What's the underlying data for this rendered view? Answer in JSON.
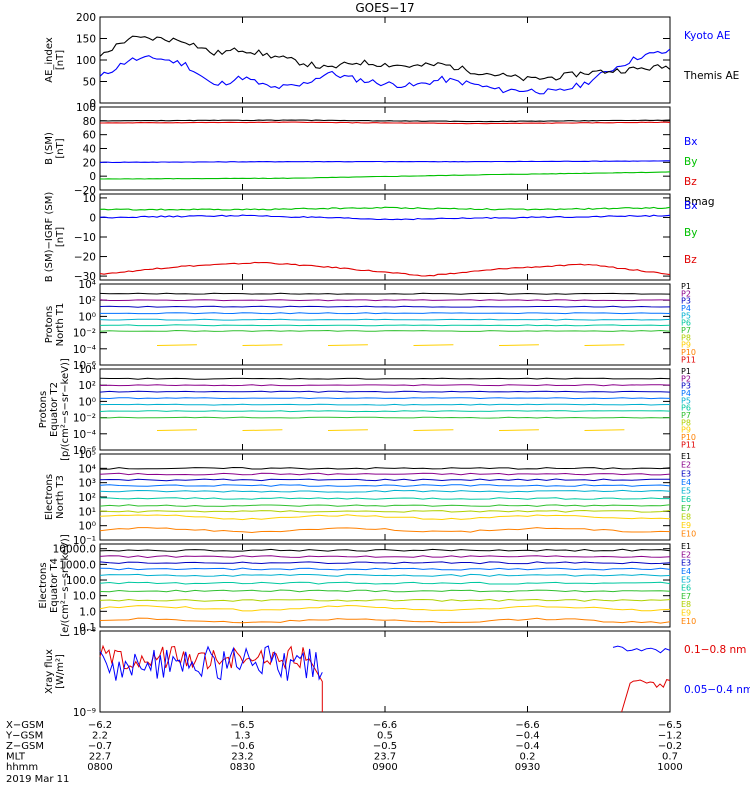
{
  "title": "GOES−17",
  "date_label": "2019 Mar 11",
  "chart_data": [
    {
      "id": "ae",
      "type": "line",
      "ylabel": [
        "AE_index",
        "[nT]"
      ],
      "ylim": [
        0,
        200
      ],
      "yticks": [
        0,
        50,
        100,
        150,
        200
      ],
      "yticklabels": [
        "0",
        "50",
        "100",
        "150",
        "200"
      ],
      "x": [
        0,
        0.05,
        0.1,
        0.15,
        0.2,
        0.25,
        0.3,
        0.35,
        0.4,
        0.45,
        0.5,
        0.55,
        0.6,
        0.65,
        0.7,
        0.75,
        0.8,
        0.85,
        0.9,
        0.95,
        1.0
      ],
      "series": [
        {
          "name": "Kyoto AE",
          "color": "#0000ff",
          "values": [
            60,
            100,
            105,
            90,
            40,
            60,
            35,
            40,
            70,
            55,
            45,
            40,
            55,
            45,
            30,
            30,
            25,
            45,
            80,
            110,
            120
          ]
        },
        {
          "name": "Themis AE",
          "color": "#000000",
          "values": [
            110,
            150,
            150,
            145,
            115,
            125,
            110,
            95,
            80,
            95,
            90,
            85,
            90,
            75,
            65,
            55,
            60,
            70,
            75,
            80,
            85
          ]
        }
      ]
    },
    {
      "id": "bsm",
      "type": "line",
      "ylabel": [
        "B (SM)",
        "[nT]"
      ],
      "ylim": [
        -20,
        100
      ],
      "yticks": [
        -20,
        0,
        20,
        40,
        60,
        80,
        100
      ],
      "yticklabels": [
        "−20",
        "0",
        "20",
        "40",
        "60",
        "80",
        "100"
      ],
      "series": [
        {
          "name": "Bx",
          "color": "#0000ff",
          "values": [
            20,
            21,
            21,
            22
          ]
        },
        {
          "name": "By",
          "color": "#00c000",
          "values": [
            -4,
            -3,
            2,
            6
          ]
        },
        {
          "name": "Bz",
          "color": "#e00000",
          "values": [
            77,
            78,
            76,
            78
          ]
        },
        {
          "name": "Bmag",
          "color": "#000000",
          "values": [
            80,
            81,
            79,
            81
          ]
        }
      ]
    },
    {
      "id": "bigrf",
      "type": "line",
      "ylabel": [
        "B (SM)−IGRF (SM)",
        "[nT]"
      ],
      "ylim": [
        -32,
        12
      ],
      "yticks": [
        -30,
        -20,
        -10,
        0,
        10
      ],
      "yticklabels": [
        "−30",
        "−20",
        "−10",
        "0",
        "10"
      ],
      "series": [
        {
          "name": "Bx",
          "color": "#0000ff",
          "values": [
            0,
            1,
            -1,
            0,
            1
          ]
        },
        {
          "name": "By",
          "color": "#00c000",
          "values": [
            4,
            4,
            5,
            4,
            5
          ]
        },
        {
          "name": "Bz",
          "color": "#e00000",
          "values": [
            -29,
            -25,
            -23,
            -26,
            -30,
            -26,
            -24,
            -29
          ]
        }
      ]
    },
    {
      "id": "pnorth",
      "type": "line",
      "log": true,
      "ylabel": [
        "Protons",
        "North T1"
      ],
      "ylim": [
        -6,
        4
      ],
      "yticks": [
        -6,
        -4,
        -2,
        0,
        2,
        4
      ],
      "yticklabels": [
        "10⁻⁶",
        "10⁻⁴",
        "10⁻²",
        "10⁰",
        "10²",
        "10⁴"
      ],
      "channels": [
        "P1",
        "P2",
        "P3",
        "P4",
        "P5",
        "P6",
        "P7",
        "P8",
        "P9",
        "P10",
        "P11"
      ],
      "levels": [
        2.8,
        2.0,
        1.2,
        0.4,
        -0.4,
        -1.1,
        -1.8,
        null,
        -3.6,
        null,
        null
      ]
    },
    {
      "id": "pequator",
      "type": "line",
      "log": true,
      "ylabel": [
        "Protons",
        "Equator T2",
        "[p/(cm²−s−sr−keV)]"
      ],
      "ylim": [
        -6,
        4
      ],
      "yticks": [
        -6,
        -4,
        -2,
        0,
        2,
        4
      ],
      "yticklabels": [
        "10⁻⁶",
        "10⁻⁴",
        "10⁻²",
        "10⁰",
        "10²",
        "10⁴"
      ],
      "channels": [
        "P1",
        "P2",
        "P3",
        "P4",
        "P5",
        "P6",
        "P7",
        "P8",
        "P9",
        "P10",
        "P11"
      ],
      "levels": [
        2.8,
        2.0,
        1.2,
        0.4,
        -0.4,
        -1.2,
        -2.0,
        null,
        -3.6,
        null,
        null
      ]
    },
    {
      "id": "enorth",
      "type": "line",
      "log": true,
      "ylabel": [
        "Electrons",
        "North T3"
      ],
      "ylim": [
        -1,
        5
      ],
      "yticks": [
        -1,
        0,
        1,
        2,
        3,
        4,
        5
      ],
      "yticklabels": [
        "10⁻¹",
        "10⁰",
        "10¹",
        "10²",
        "10³",
        "10⁴",
        "10⁵"
      ],
      "channels": [
        "E1",
        "E2",
        "E3",
        "E4",
        "E5",
        "E6",
        "E7",
        "E8",
        "E9",
        "E10"
      ],
      "levels": [
        4.0,
        3.6,
        3.2,
        2.8,
        2.4,
        1.9,
        1.4,
        1.0,
        0.6,
        -0.3
      ]
    },
    {
      "id": "eequator",
      "type": "line",
      "log": true,
      "ylabel": [
        "Electrons",
        "Equator T4",
        "[e/(cm²−s−sr−keV)]"
      ],
      "ylim": [
        -1,
        4.3
      ],
      "yticks": [
        -1,
        0,
        1,
        2,
        3,
        4
      ],
      "yticklabels": [
        "0.1",
        "1.0",
        "10.0",
        "100.0",
        "1000.0",
        "10000.0"
      ],
      "channels": [
        "E1",
        "E2",
        "E3",
        "E4",
        "E5",
        "E6",
        "E7",
        "E8",
        "E9",
        "E10"
      ],
      "levels": [
        3.9,
        3.5,
        3.1,
        2.7,
        2.3,
        1.8,
        1.3,
        0.7,
        0.2,
        -0.6
      ]
    },
    {
      "id": "xray",
      "type": "line",
      "log": true,
      "ylabel": [
        "Xray flux",
        "[W/m²]"
      ],
      "ylim": [
        -9,
        -8
      ],
      "yticks": [
        -9,
        -8
      ],
      "yticklabels": [
        "10⁻⁹",
        "10⁻⁸"
      ],
      "series": [
        {
          "name": "0.1−0.8 nm",
          "color": "#e00000"
        },
        {
          "name": "0.05−0.4 nm",
          "color": "#0000ff"
        }
      ]
    }
  ],
  "x_axis": {
    "row_labels": [
      "X−GSM",
      "Y−GSM",
      "Z−GSM",
      "MLT",
      "hhmm"
    ],
    "columns": [
      [
        "−6.2",
        "2.2",
        "−0.7",
        "22.7",
        "0800"
      ],
      [
        "−6.5",
        "1.3",
        "−0.6",
        "23.2",
        "0830"
      ],
      [
        "−6.6",
        "0.5",
        "−0.5",
        "23.7",
        "0900"
      ],
      [
        "−6.6",
        "−0.4",
        "−0.4",
        "0.2",
        "0930"
      ],
      [
        "−6.5",
        "−1.2",
        "−0.2",
        "0.7",
        "1000"
      ]
    ]
  },
  "channel_colors": [
    "#000000",
    "#8b008b",
    "#0000c0",
    "#0070ff",
    "#00b0d0",
    "#00c8a0",
    "#30c030",
    "#b0d000",
    "#ffd000",
    "#ff8000",
    "#e00000",
    "#b00000"
  ]
}
